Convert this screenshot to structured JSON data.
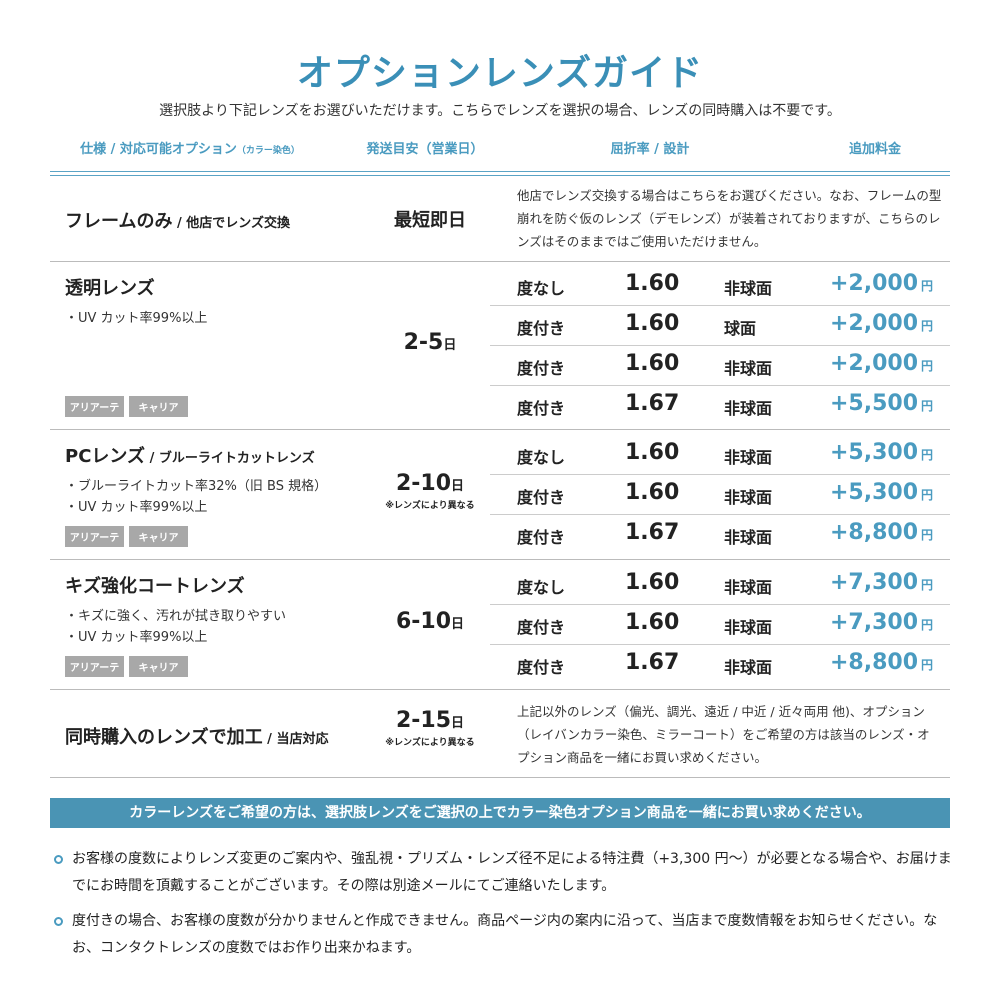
{
  "title": "オプションレンズガイド",
  "subtitle": "選択肢より下記レンズをお選びいただけます。こちらでレンズを選択の場合、レンズの同時購入は不要です。",
  "headers": {
    "spec": "仕様 / 対応可能オプション",
    "spec_small": "（カラー染色）",
    "shipping": "発送目安（営業日）",
    "index": "屈折率 / 設計",
    "price": "追加料金"
  },
  "colors": {
    "accent": "#3a8fb7",
    "price": "#4a9bc0",
    "banner": "#4a94b4",
    "tag": "#a8a8a8"
  },
  "frame_only": {
    "name": "フレームのみ",
    "name_sub": " / 他店でレンズ交換",
    "shipping": "最短即日",
    "description": "他店でレンズ交換する場合はこちらをお選びください。なお、フレームの型崩れを防ぐ仮のレンズ（デモレンズ）が装着されておりますが、こちらのレンズはそのままではご使用いただけません。"
  },
  "lens_groups": [
    {
      "name": "透明レンズ",
      "name_sub": "",
      "features": [
        "・UV カット率99%以上"
      ],
      "tags": [
        "アリアーテ",
        "キャリア"
      ],
      "shipping": "2-5",
      "shipping_unit": "日",
      "shipping_note": "",
      "options": [
        {
          "degree": "度なし",
          "index": "1.60",
          "design": "非球面",
          "price": "+2,000",
          "unit": "円"
        },
        {
          "degree": "度付き",
          "index": "1.60",
          "design": "球面",
          "price": "+2,000",
          "unit": "円"
        },
        {
          "degree": "度付き",
          "index": "1.60",
          "design": "非球面",
          "price": "+2,000",
          "unit": "円"
        },
        {
          "degree": "度付き",
          "index": "1.67",
          "design": "非球面",
          "price": "+5,500",
          "unit": "円"
        }
      ]
    },
    {
      "name": "PCレンズ",
      "name_sub": " / ブルーライトカットレンズ",
      "features": [
        "・ブルーライトカット率32%（旧 BS 規格）",
        "・UV カット率99%以上"
      ],
      "tags": [
        "アリアーテ",
        "キャリア"
      ],
      "shipping": "2-10",
      "shipping_unit": "日",
      "shipping_note": "※レンズにより異なる",
      "options": [
        {
          "degree": "度なし",
          "index": "1.60",
          "design": "非球面",
          "price": "+5,300",
          "unit": "円"
        },
        {
          "degree": "度付き",
          "index": "1.60",
          "design": "非球面",
          "price": "+5,300",
          "unit": "円"
        },
        {
          "degree": "度付き",
          "index": "1.67",
          "design": "非球面",
          "price": "+8,800",
          "unit": "円"
        }
      ]
    },
    {
      "name": "キズ強化コートレンズ",
      "name_sub": "",
      "features": [
        "・キズに強く、汚れが拭き取りやすい",
        "・UV カット率99%以上"
      ],
      "tags": [
        "アリアーテ",
        "キャリア"
      ],
      "shipping": "6-10",
      "shipping_unit": "日",
      "shipping_note": "",
      "options": [
        {
          "degree": "度なし",
          "index": "1.60",
          "design": "非球面",
          "price": "+7,300",
          "unit": "円"
        },
        {
          "degree": "度付き",
          "index": "1.60",
          "design": "非球面",
          "price": "+7,300",
          "unit": "円"
        },
        {
          "degree": "度付き",
          "index": "1.67",
          "design": "非球面",
          "price": "+8,800",
          "unit": "円"
        }
      ]
    }
  ],
  "in_store": {
    "name": "同時購入のレンズで加工",
    "name_sub": " / 当店対応",
    "shipping": "2-15",
    "shipping_unit": "日",
    "shipping_note": "※レンズにより異なる",
    "description": "上記以外のレンズ（偏光、調光、遠近 / 中近 / 近々両用 他)、オプション（レイバンカラー染色、ミラーコート）をご希望の方は該当のレンズ・オプション商品を一緒にお買い求めください。"
  },
  "banner": "カラーレンズをご希望の方は、選択肢レンズをご選択の上でカラー染色オプション商品を一緒にお買い求めください。",
  "notes": [
    "お客様の度数によりレンズ変更のご案内や、強乱視・プリズム・レンズ径不足による特注費（+3,300 円〜）が必要となる場合や、お届けまでにお時間を頂戴することがございます。その際は別途メールにてご連絡いたします。",
    "度付きの場合、お客様の度数が分かりませんと作成できません。商品ページ内の案内に沿って、当店まで度数情報をお知らせください。なお、コンタクトレンズの度数ではお作り出来かねます。"
  ]
}
